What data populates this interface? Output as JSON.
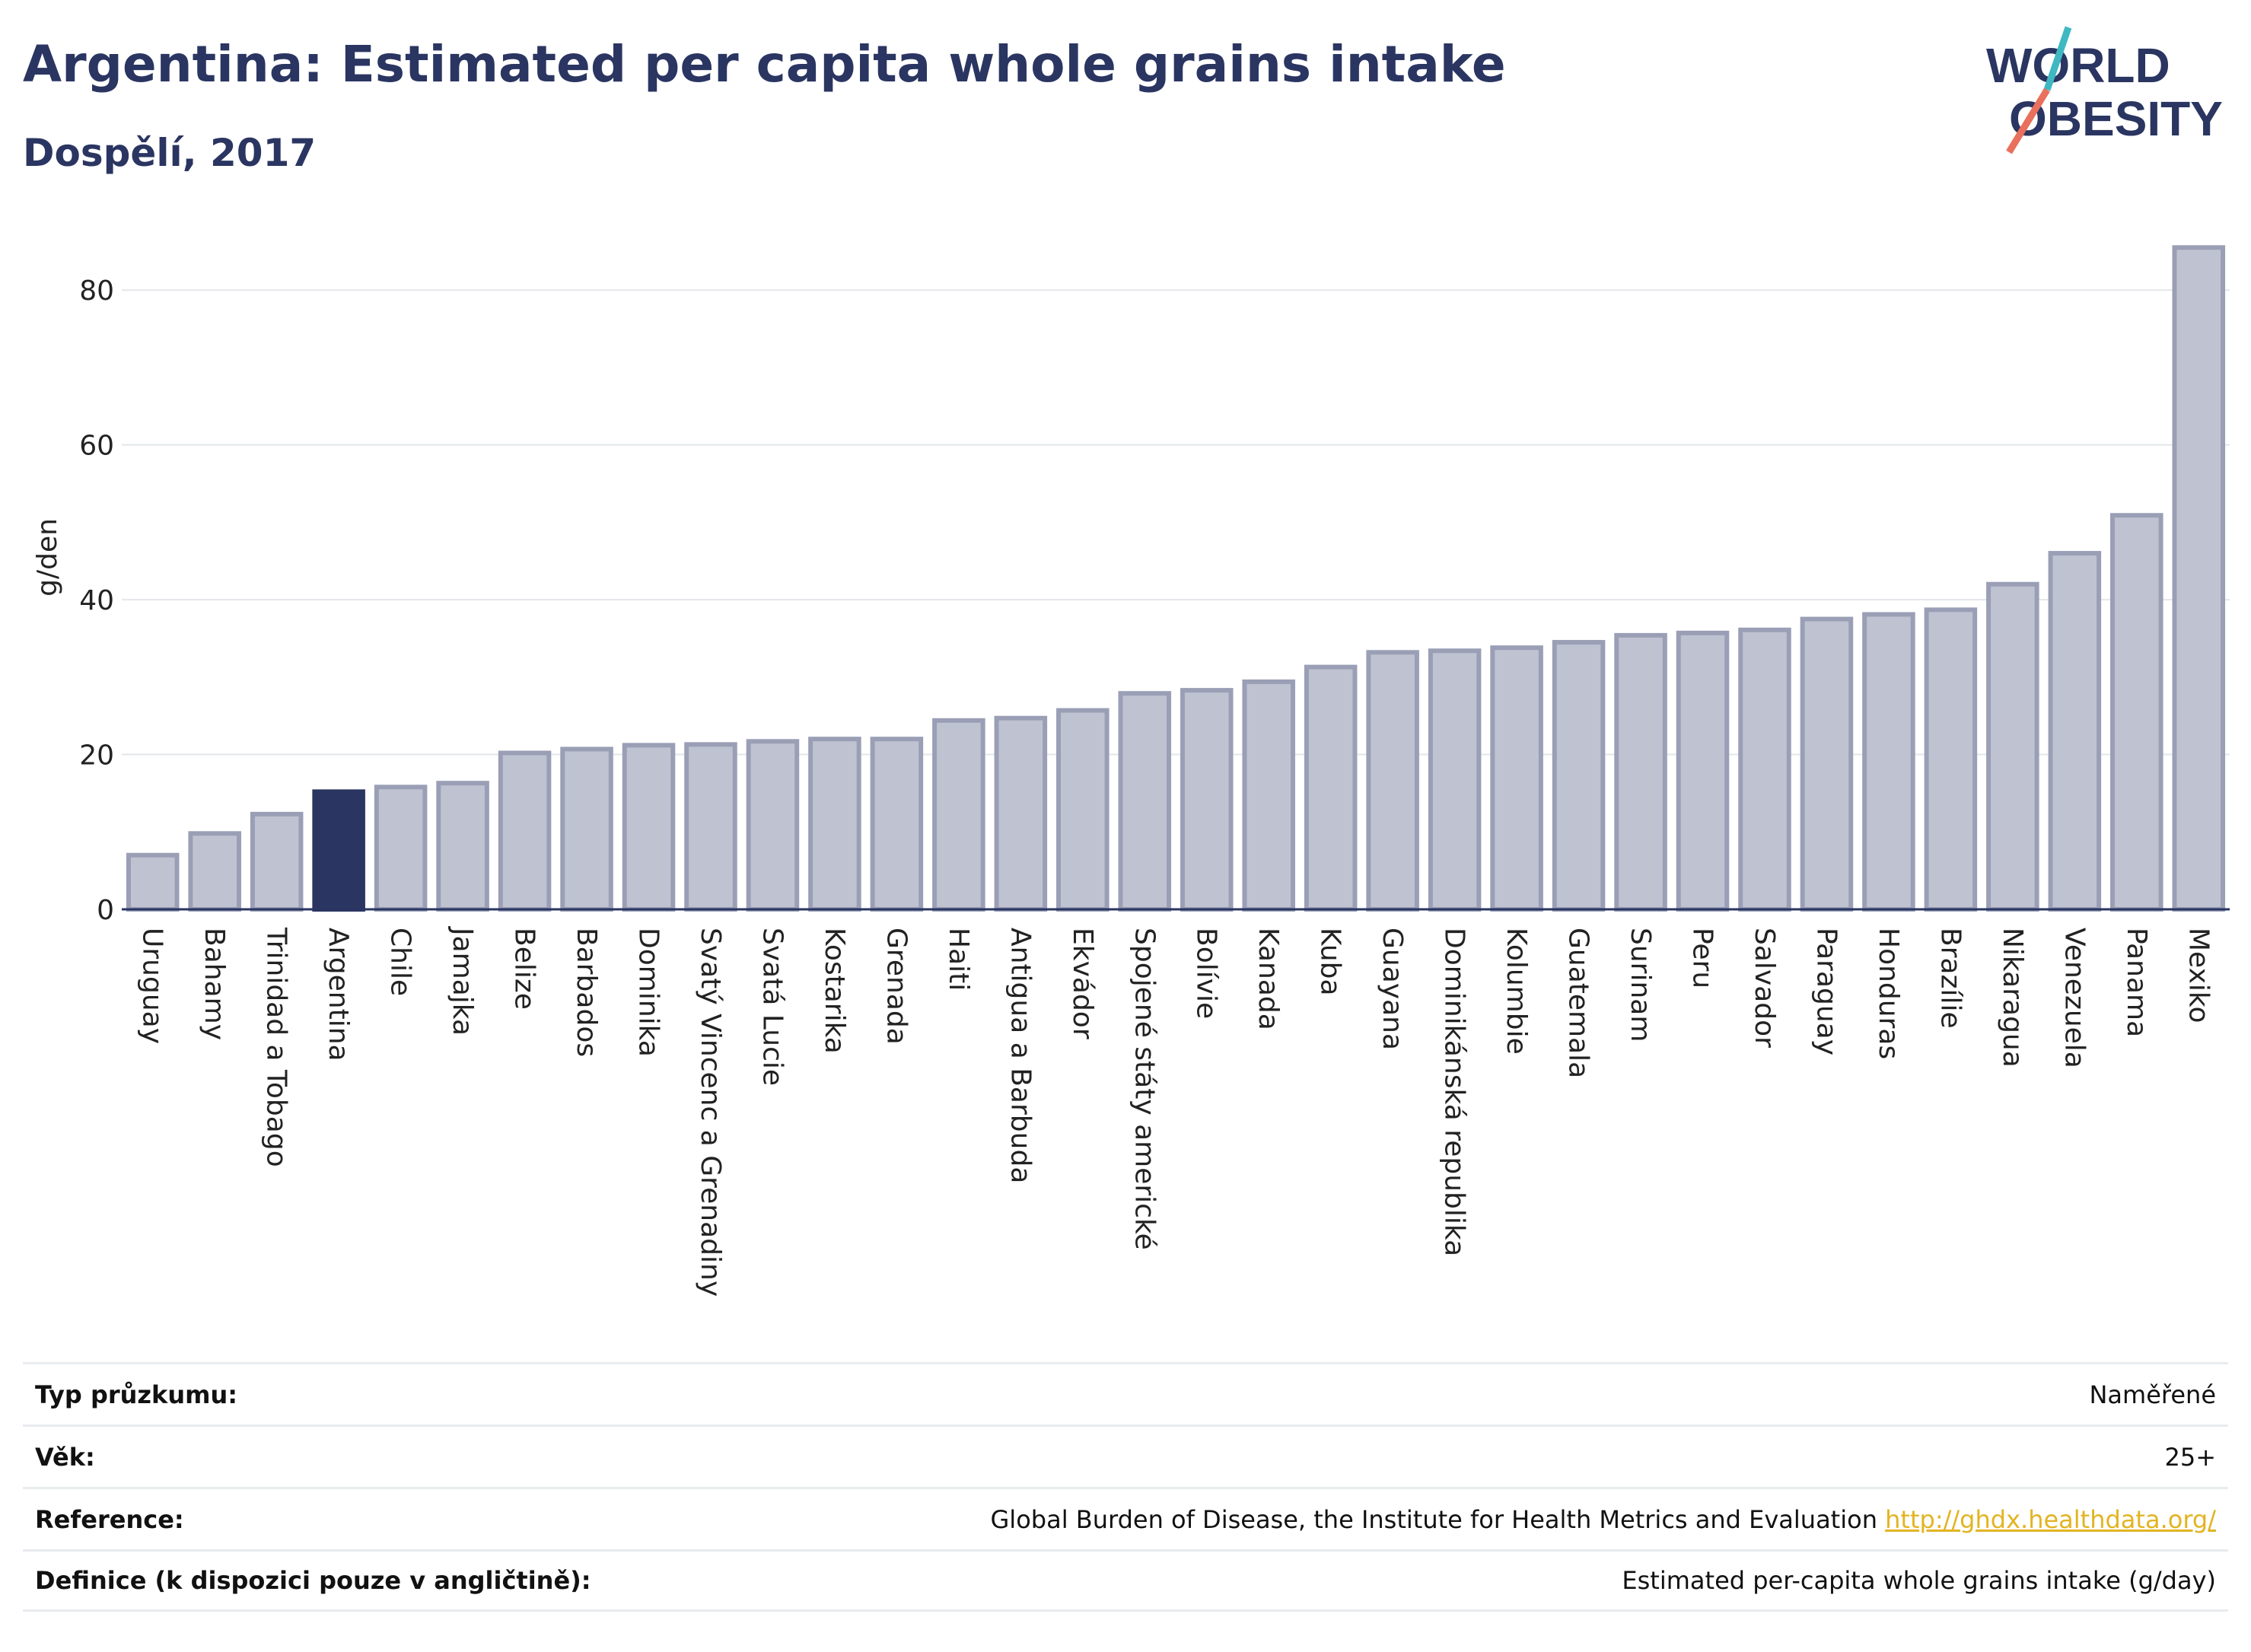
{
  "title": "Argentina: Estimated per capita whole grains intake",
  "subtitle": "Dospělí, 2017",
  "logo": {
    "line1": "WORLD",
    "line2": "OBESITY"
  },
  "colors": {
    "bar": "#bfc3d1",
    "bar_stroke": "#9a9fb6",
    "highlight": "#2a3561",
    "title": "#2a3561"
  },
  "chart_data": {
    "type": "bar",
    "ylabel": "g/den",
    "ylim": [
      0,
      87
    ],
    "yticks": [
      0,
      20,
      40,
      60,
      80
    ],
    "grid": true,
    "highlight": "Argentina",
    "categories": [
      "Uruguay",
      "Bahamy",
      "Trinidad a Tobago",
      "Argentina",
      "Chile",
      "Jamajka",
      "Belize",
      "Barbados",
      "Dominika",
      "Svatý Vincenc a Grenadiny",
      "Svatá Lucie",
      "Kostarika",
      "Grenada",
      "Haiti",
      "Antigua a Barbuda",
      "Ekvádor",
      "Spojené státy americké",
      "Bolívie",
      "Kanada",
      "Kuba",
      "Guayana",
      "Dominikánská republika",
      "Kolumbie",
      "Guatemala",
      "Surinam",
      "Peru",
      "Salvador",
      "Paraguay",
      "Honduras",
      "Brazílie",
      "Nikaragua",
      "Venezuela",
      "Panama",
      "Mexiko"
    ],
    "values": [
      7.0,
      9.8,
      12.3,
      15.2,
      15.8,
      16.3,
      20.2,
      20.7,
      21.2,
      21.3,
      21.7,
      22.0,
      22.0,
      24.4,
      24.7,
      25.7,
      27.9,
      28.3,
      29.4,
      31.3,
      33.2,
      33.4,
      33.8,
      34.5,
      35.4,
      35.7,
      36.1,
      37.5,
      38.1,
      38.7,
      42.0,
      46.0,
      50.9,
      85.5
    ]
  },
  "meta": [
    {
      "label": "Typ průzkumu:",
      "value": "Naměřené"
    },
    {
      "label": "Věk:",
      "value": "25+"
    },
    {
      "label": "Reference:",
      "value": "Global Burden of Disease, the Institute for Health Metrics and Evaluation",
      "link": "http://ghdx.healthdata.org/"
    },
    {
      "label": "Definice (k dispozici pouze v angličtině):",
      "value": "Estimated per-capita whole grains intake (g/day)"
    }
  ]
}
